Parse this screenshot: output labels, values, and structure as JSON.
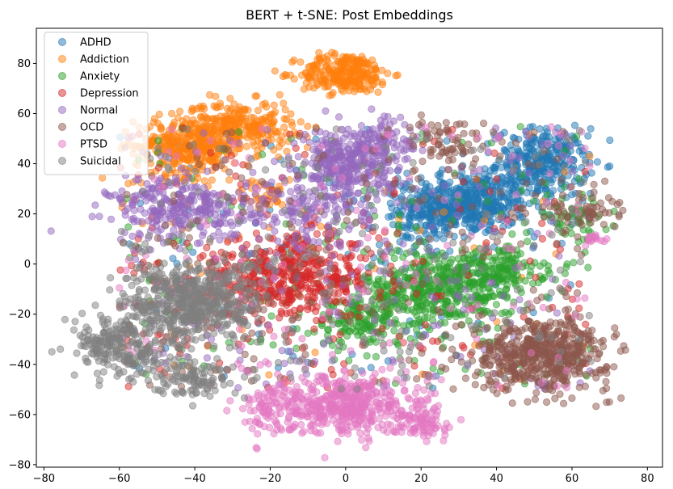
{
  "chart_data": {
    "type": "scatter",
    "title": "BERT + t-SNE: Post Embeddings",
    "xlabel": "",
    "ylabel": "",
    "xlim": [
      -82,
      84
    ],
    "ylim": [
      -81,
      94
    ],
    "xticks": [
      -80,
      -60,
      -40,
      -20,
      0,
      20,
      40,
      60,
      80
    ],
    "yticks": [
      -80,
      -60,
      -40,
      -20,
      0,
      20,
      40,
      60,
      80
    ],
    "grid": false,
    "legend_position": "top-left",
    "point_alpha": 0.5,
    "series": [
      {
        "name": "ADHD",
        "color": "#1f77b4",
        "clusters": [
          {
            "cx": 32,
            "cy": 24,
            "sx": 8,
            "sy": 6,
            "n": 420
          },
          {
            "cx": 52,
            "cy": 40,
            "sx": 6,
            "sy": 7,
            "n": 300
          },
          {
            "cx": 20,
            "cy": 18,
            "sx": 6,
            "sy": 8,
            "n": 120
          }
        ],
        "noise": 120
      },
      {
        "name": "Addiction",
        "color": "#ff7f0e",
        "clusters": [
          {
            "cx": 0,
            "cy": 76,
            "sx": 6,
            "sy": 4,
            "n": 260
          },
          {
            "cx": -42,
            "cy": 47,
            "sx": 7,
            "sy": 6,
            "n": 340
          },
          {
            "cx": -28,
            "cy": 55,
            "sx": 7,
            "sy": 5,
            "n": 250
          },
          {
            "cx": -22,
            "cy": 28,
            "sx": 3,
            "sy": 3,
            "n": 30
          }
        ],
        "noise": 70
      },
      {
        "name": "Anxiety",
        "color": "#2ca02c",
        "clusters": [
          {
            "cx": 25,
            "cy": -10,
            "sx": 10,
            "sy": 8,
            "n": 420
          },
          {
            "cx": 40,
            "cy": -2,
            "sx": 6,
            "sy": 5,
            "n": 140
          },
          {
            "cx": 5,
            "cy": -22,
            "sx": 8,
            "sy": 6,
            "n": 160
          },
          {
            "cx": 60,
            "cy": 18,
            "sx": 5,
            "sy": 4,
            "n": 50
          }
        ],
        "noise": 160
      },
      {
        "name": "Depression",
        "color": "#d62728",
        "clusters": [
          {
            "cx": -12,
            "cy": -5,
            "sx": 10,
            "sy": 8,
            "n": 380
          },
          {
            "cx": -30,
            "cy": -8,
            "sx": 8,
            "sy": 7,
            "n": 100
          }
        ],
        "noise": 180
      },
      {
        "name": "Normal",
        "color": "#9467bd",
        "clusters": [
          {
            "cx": 0,
            "cy": 40,
            "sx": 6,
            "sy": 7,
            "n": 280
          },
          {
            "cx": -42,
            "cy": 22,
            "sx": 10,
            "sy": 6,
            "n": 260
          },
          {
            "cx": 10,
            "cy": 48,
            "sx": 5,
            "sy": 5,
            "n": 90
          },
          {
            "cx": -10,
            "cy": 20,
            "sx": 8,
            "sy": 8,
            "n": 120
          }
        ],
        "noise": 220
      },
      {
        "name": "OCD",
        "color": "#8c564b",
        "clusters": [
          {
            "cx": 52,
            "cy": -36,
            "sx": 9,
            "sy": 7,
            "n": 520
          },
          {
            "cx": 28,
            "cy": 48,
            "sx": 5,
            "sy": 6,
            "n": 60
          },
          {
            "cx": 62,
            "cy": 22,
            "sx": 5,
            "sy": 4,
            "n": 60
          }
        ],
        "noise": 240
      },
      {
        "name": "PTSD",
        "color": "#e377c2",
        "clusters": [
          {
            "cx": 0,
            "cy": -56,
            "sx": 8,
            "sy": 6,
            "n": 420
          },
          {
            "cx": 20,
            "cy": -62,
            "sx": 4,
            "sy": 4,
            "n": 90
          },
          {
            "cx": -20,
            "cy": -58,
            "sx": 5,
            "sy": 5,
            "n": 90
          },
          {
            "cx": 66,
            "cy": 10,
            "sx": 2,
            "sy": 2,
            "n": 15
          }
        ],
        "noise": 160
      },
      {
        "name": "Suicidal",
        "color": "#7f7f7f",
        "clusters": [
          {
            "cx": -40,
            "cy": -15,
            "sx": 9,
            "sy": 8,
            "n": 520
          },
          {
            "cx": -60,
            "cy": -33,
            "sx": 6,
            "sy": 6,
            "n": 220
          },
          {
            "cx": -40,
            "cy": -45,
            "sx": 5,
            "sy": 4,
            "n": 110
          }
        ],
        "noise": 200
      }
    ]
  }
}
